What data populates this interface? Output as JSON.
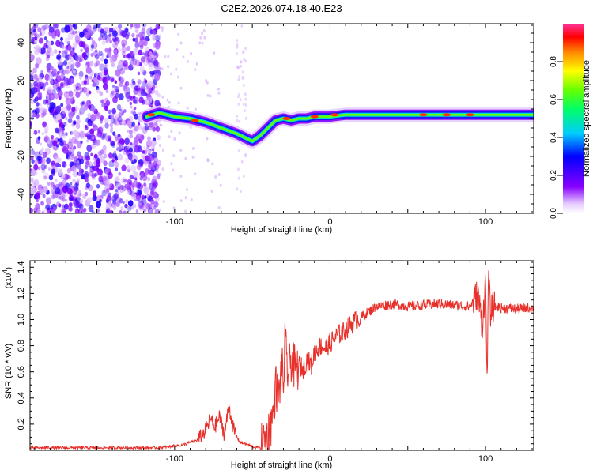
{
  "title": "C2E2.2026.074.18.40.E23",
  "chart_data": [
    {
      "type": "heatmap",
      "name": "spectrogram",
      "xlabel": "Height of straight line (km)",
      "ylabel": "Frequency (Hz)",
      "xlim": [
        -193,
        131
      ],
      "ylim": [
        -50,
        50
      ],
      "xticks": [
        -100,
        0,
        100
      ],
      "yticks": [
        -40,
        -20,
        0,
        20,
        40
      ],
      "colorbar": {
        "label": "Normalized spectral amplitude",
        "range": [
          0,
          1
        ],
        "ticks": [
          0.0,
          0.2,
          0.4,
          0.6,
          0.8
        ]
      },
      "ridge": {
        "x": [
          -118,
          -110,
          -100,
          -90,
          -80,
          -70,
          -60,
          -55,
          -50,
          -45,
          -40,
          -35,
          -30,
          -25,
          -20,
          -15,
          -10,
          -5,
          0,
          10,
          20,
          40,
          60,
          80,
          100,
          120,
          131
        ],
        "y": [
          1,
          3,
          1,
          0,
          -2,
          -5,
          -8,
          -10,
          -12,
          -9,
          -5,
          -1,
          0,
          -1,
          0,
          0,
          1,
          1,
          1,
          2,
          2,
          2,
          2,
          2,
          2,
          2,
          2
        ]
      }
    },
    {
      "type": "line",
      "name": "snr",
      "xlabel": "Height of straight line (km)",
      "ylabel": "SNR (10 * v/v)",
      "yscale_label": "(x10",
      "yscale_exp": "4",
      "xlim": [
        -193,
        131
      ],
      "ylim": [
        0,
        1.45
      ],
      "xticks": [
        -100,
        0,
        100
      ],
      "yticks": [
        0.2,
        0.4,
        0.6,
        0.8,
        1.0,
        1.2,
        1.4
      ],
      "series": [
        {
          "name": "SNR",
          "color": "#e8302b",
          "x": [
            -193,
            -150,
            -110,
            -95,
            -85,
            -80,
            -77,
            -74,
            -71,
            -68,
            -65,
            -62,
            -58,
            -52,
            -48,
            -44,
            -40,
            -37,
            -35,
            -33,
            -31,
            -30,
            -29,
            -27,
            -25,
            -22,
            -20,
            -17,
            -15,
            -12,
            -10,
            -6,
            -3,
            0,
            5,
            10,
            15,
            20,
            25,
            30,
            40,
            50,
            60,
            70,
            80,
            90,
            95,
            98,
            100,
            101,
            102,
            103,
            105,
            110,
            120,
            131
          ],
          "y": [
            0.02,
            0.02,
            0.02,
            0.04,
            0.08,
            0.15,
            0.24,
            0.18,
            0.26,
            0.12,
            0.34,
            0.15,
            0.06,
            0.04,
            0.02,
            0.03,
            0.12,
            0.25,
            0.5,
            0.4,
            0.65,
            0.48,
            0.82,
            0.58,
            0.7,
            0.6,
            0.65,
            0.62,
            0.7,
            0.65,
            0.75,
            0.8,
            0.78,
            0.82,
            0.88,
            0.92,
            0.98,
            1.02,
            1.06,
            1.1,
            1.12,
            1.1,
            1.11,
            1.12,
            1.11,
            1.1,
            1.2,
            0.95,
            1.3,
            0.55,
            1.35,
            1.05,
            1.1,
            1.09,
            1.08,
            1.09
          ]
        }
      ]
    }
  ]
}
